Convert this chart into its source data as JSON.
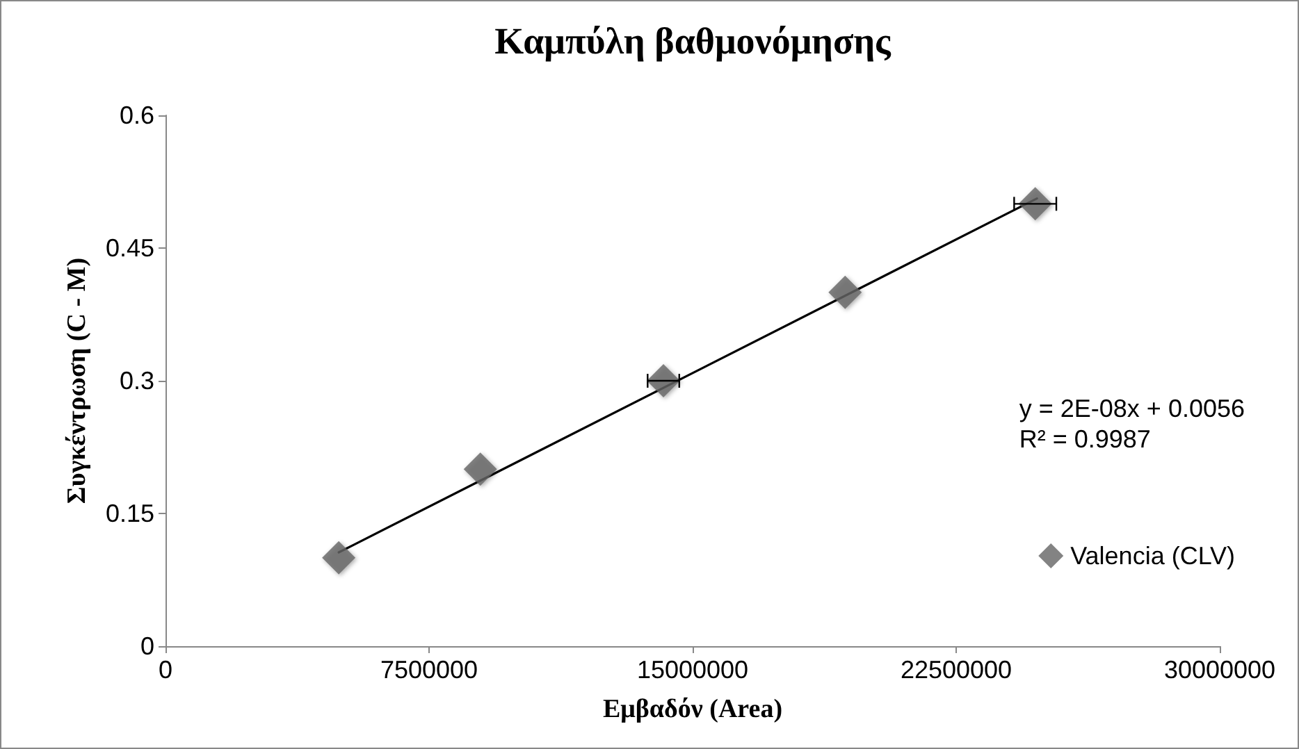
{
  "chart_data": {
    "type": "scatter",
    "title": "Καμπύλη βαθμονόμησης",
    "xlabel": "Εμβαδόν (Area)",
    "ylabel": "Συγκέντρωση (C - M)",
    "xlim": [
      0,
      30000000
    ],
    "xticks": [
      0,
      7500000,
      15000000,
      22500000,
      30000000
    ],
    "ylim": [
      0,
      0.6
    ],
    "yticks": [
      0,
      0.15,
      0.3,
      0.45,
      0.6
    ],
    "grid": false,
    "legend": "right",
    "marker": "diamond",
    "series": [
      {
        "name": "Valencia (CLV)",
        "color": "#646464",
        "x": [
          4930000,
          8960000,
          14170000,
          19340000,
          24750000
        ],
        "values": [
          0.1,
          0.2,
          0.3,
          0.4,
          0.5
        ],
        "xerrors": [
          null,
          null,
          450000,
          null,
          600000
        ]
      },
      {
        "type": "line",
        "color": "#000000",
        "x": [
          4930000,
          24800000
        ],
        "values": [
          0.106,
          0.506
        ],
        "marker": "none",
        "line_style": "solid"
      }
    ],
    "annotations": [
      "y = 2E-08x + 0.0056\nR² = 0.9987"
    ]
  }
}
